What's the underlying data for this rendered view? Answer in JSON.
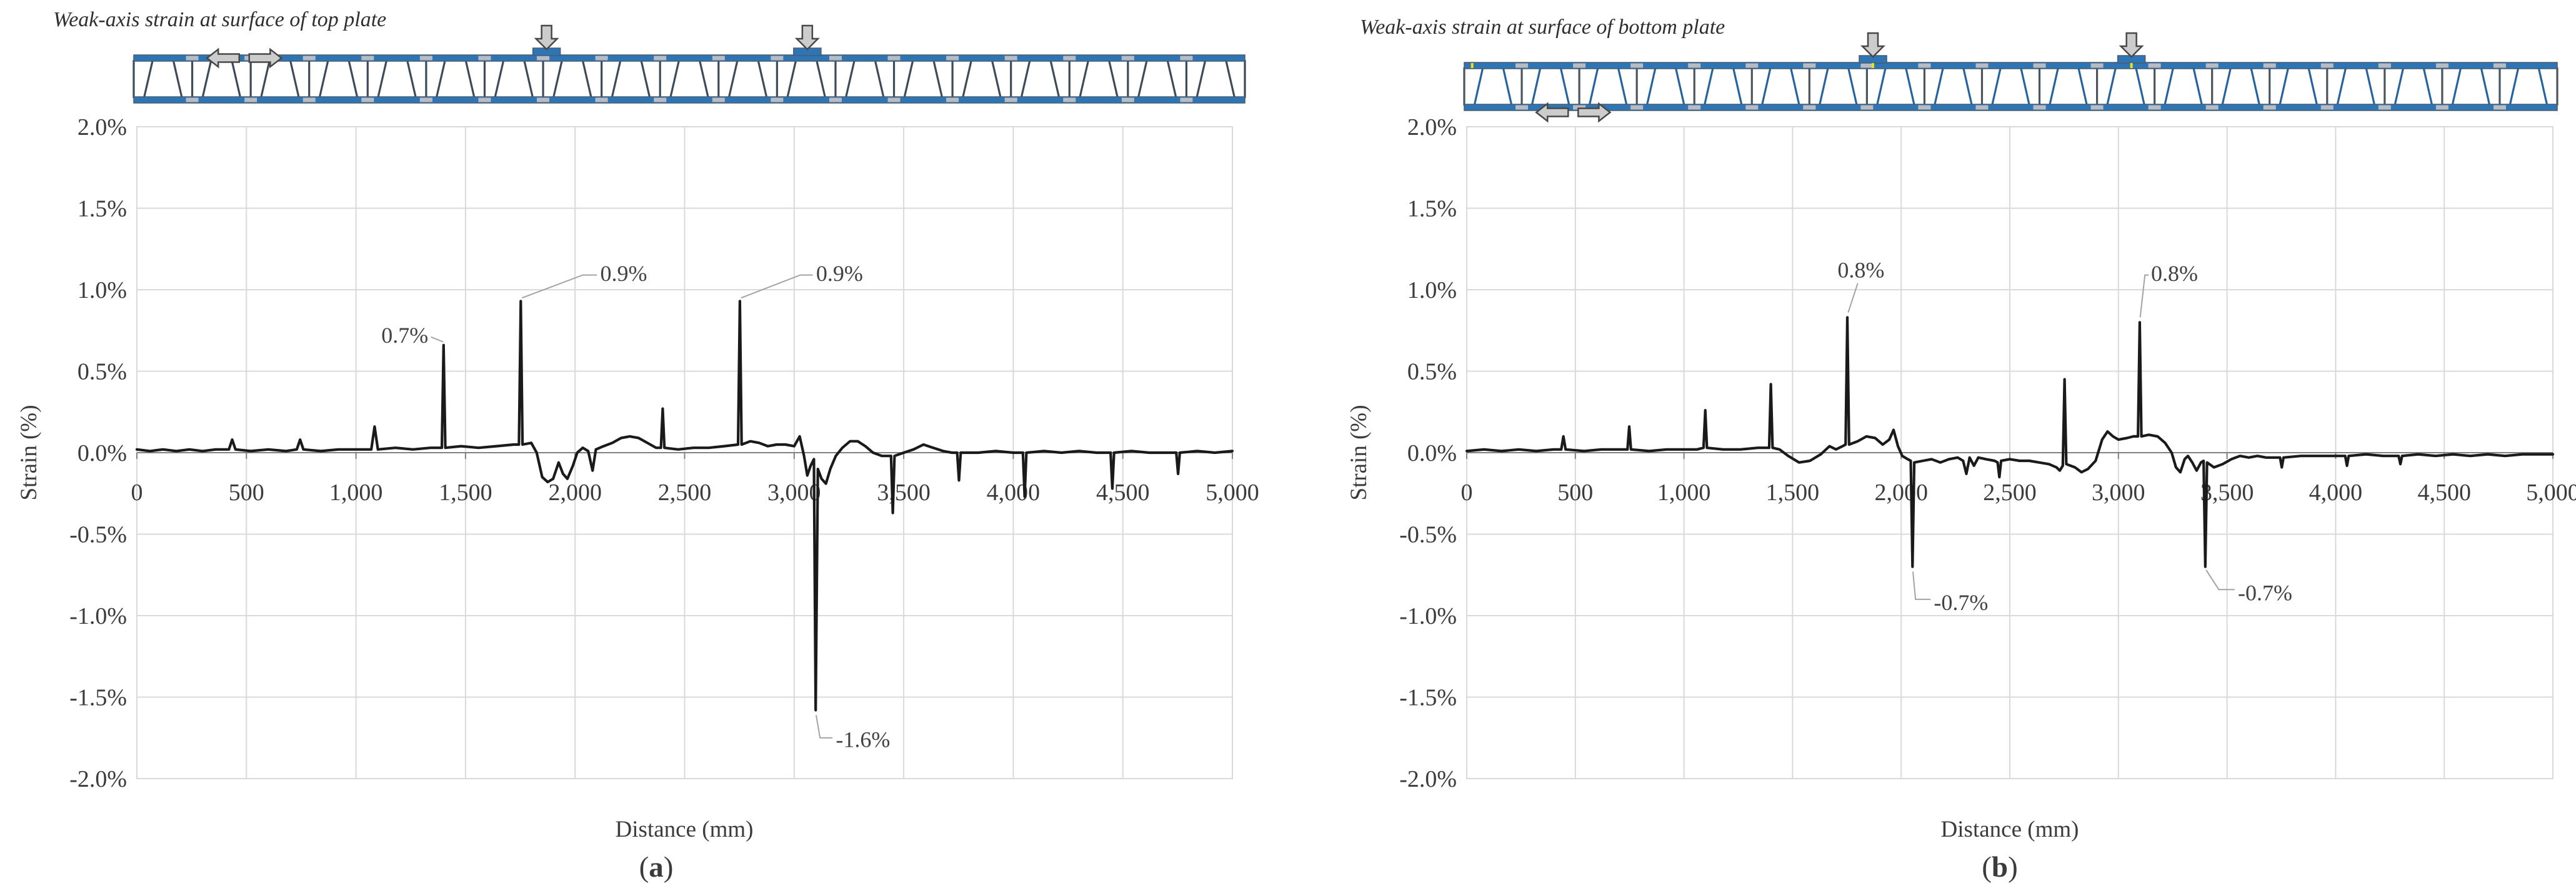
{
  "figure": {
    "background": "#ffffff",
    "description": "Two strain-distribution line charts with corrugated-web sandwich panel load diagrams above each plot"
  },
  "colors": {
    "curve": "#1a1a1a",
    "grid": "#d9d9d9",
    "axis": "#808080",
    "plot_border": "#d9d9d9",
    "text": "#3b3b3b",
    "leader": "#a3a3a3",
    "plate_blue": "#2e75b6",
    "plate_edge": "#4a5a6a",
    "joint_gray": "#b7bcc4",
    "arrow_fill": "#cccccc",
    "arrow_stroke": "#474747",
    "gauge_yellow": "#f0e10a"
  },
  "chart_data": [
    {
      "panel": "a",
      "type": "line",
      "title": "Weak-axis strain at surface of top plate",
      "caption": "(a)",
      "xlabel": "Distance (mm)",
      "ylabel": "Strain (%)",
      "xlim": [
        0,
        5000
      ],
      "ylim": [
        -2,
        2
      ],
      "grid": true,
      "legend": "none",
      "x_ticks": [
        "0",
        "500",
        "1,000",
        "1,500",
        "2,000",
        "2,500",
        "3,000",
        "3,500",
        "4,000",
        "4,500",
        "5,000"
      ],
      "y_ticks": [
        "2.0%",
        "1.5%",
        "1.0%",
        "0.5%",
        "0.0%",
        "-0.5%",
        "-1.0%",
        "-1.5%",
        "-2.0%"
      ],
      "diagram": {
        "kind": "corrugated-web sandwich panel elevation",
        "web_color": "#3d4a5a",
        "post_color": "#3d4a5a",
        "load_positions_mm": [
          1870,
          3060
        ],
        "slip_arrow_positions_mm": [
          320,
          660
        ],
        "slip_arrow_surface": "top",
        "gauge_marks_mm": []
      },
      "annotations": [
        {
          "label": "0.7%",
          "point": [
            1400,
            0.66
          ],
          "text_at": [
            1330,
            0.72
          ],
          "anchor": "end",
          "leader": [
            [
              1398,
              0.68
            ],
            [
              1342,
              0.71
            ]
          ]
        },
        {
          "label": "0.9%",
          "point": [
            1752,
            0.93
          ],
          "text_at": [
            2115,
            1.1
          ],
          "anchor": "start",
          "leader": [
            [
              1758,
              0.95
            ],
            [
              2035,
              1.09
            ],
            [
              2100,
              1.09
            ]
          ]
        },
        {
          "label": "0.9%",
          "point": [
            2752,
            0.93
          ],
          "text_at": [
            3100,
            1.1
          ],
          "anchor": "start",
          "leader": [
            [
              2758,
              0.95
            ],
            [
              3028,
              1.09
            ],
            [
              3085,
              1.09
            ]
          ]
        },
        {
          "label": "-1.6%",
          "point": [
            3098,
            -1.58
          ],
          "text_at": [
            3190,
            -1.76
          ],
          "anchor": "start",
          "leader": [
            [
              3100,
              -1.61
            ],
            [
              3118,
              -1.75
            ],
            [
              3175,
              -1.75
            ]
          ]
        }
      ],
      "series": [
        [
          0,
          0.02
        ],
        [
          60,
          0.01
        ],
        [
          120,
          0.02
        ],
        [
          180,
          0.01
        ],
        [
          240,
          0.02
        ],
        [
          300,
          0.01
        ],
        [
          360,
          0.02
        ],
        [
          420,
          0.02
        ],
        [
          435,
          0.08
        ],
        [
          450,
          0.02
        ],
        [
          520,
          0.01
        ],
        [
          600,
          0.02
        ],
        [
          680,
          0.01
        ],
        [
          730,
          0.02
        ],
        [
          745,
          0.08
        ],
        [
          760,
          0.02
        ],
        [
          840,
          0.01
        ],
        [
          920,
          0.02
        ],
        [
          1000,
          0.02
        ],
        [
          1070,
          0.02
        ],
        [
          1085,
          0.16
        ],
        [
          1100,
          0.02
        ],
        [
          1180,
          0.03
        ],
        [
          1260,
          0.02
        ],
        [
          1340,
          0.03
        ],
        [
          1392,
          0.03
        ],
        [
          1400,
          0.66
        ],
        [
          1408,
          0.03
        ],
        [
          1480,
          0.04
        ],
        [
          1560,
          0.03
        ],
        [
          1640,
          0.04
        ],
        [
          1720,
          0.05
        ],
        [
          1744,
          0.05
        ],
        [
          1752,
          0.93
        ],
        [
          1760,
          0.05
        ],
        [
          1800,
          0.06
        ],
        [
          1825,
          0.0
        ],
        [
          1850,
          -0.15
        ],
        [
          1875,
          -0.18
        ],
        [
          1900,
          -0.16
        ],
        [
          1925,
          -0.06
        ],
        [
          1945,
          -0.13
        ],
        [
          1965,
          -0.16
        ],
        [
          1990,
          -0.08
        ],
        [
          2010,
          0.0
        ],
        [
          2035,
          0.03
        ],
        [
          2060,
          0.01
        ],
        [
          2080,
          -0.11
        ],
        [
          2095,
          0.02
        ],
        [
          2130,
          0.04
        ],
        [
          2170,
          0.06
        ],
        [
          2210,
          0.09
        ],
        [
          2250,
          0.1
        ],
        [
          2290,
          0.09
        ],
        [
          2330,
          0.06
        ],
        [
          2370,
          0.03
        ],
        [
          2392,
          0.03
        ],
        [
          2400,
          0.27
        ],
        [
          2408,
          0.03
        ],
        [
          2470,
          0.02
        ],
        [
          2540,
          0.03
        ],
        [
          2610,
          0.03
        ],
        [
          2680,
          0.04
        ],
        [
          2744,
          0.05
        ],
        [
          2752,
          0.93
        ],
        [
          2760,
          0.05
        ],
        [
          2800,
          0.07
        ],
        [
          2840,
          0.06
        ],
        [
          2880,
          0.04
        ],
        [
          2920,
          0.05
        ],
        [
          2960,
          0.05
        ],
        [
          3000,
          0.04
        ],
        [
          3025,
          0.1
        ],
        [
          3045,
          -0.02
        ],
        [
          3060,
          -0.14
        ],
        [
          3075,
          -0.08
        ],
        [
          3090,
          -0.04
        ],
        [
          3098,
          -1.58
        ],
        [
          3108,
          -0.1
        ],
        [
          3125,
          -0.16
        ],
        [
          3145,
          -0.19
        ],
        [
          3165,
          -0.1
        ],
        [
          3190,
          -0.02
        ],
        [
          3220,
          0.03
        ],
        [
          3255,
          0.07
        ],
        [
          3290,
          0.07
        ],
        [
          3325,
          0.04
        ],
        [
          3360,
          0.0
        ],
        [
          3400,
          -0.02
        ],
        [
          3442,
          -0.02
        ],
        [
          3450,
          -0.37
        ],
        [
          3458,
          -0.02
        ],
        [
          3500,
          0.0
        ],
        [
          3545,
          0.02
        ],
        [
          3590,
          0.05
        ],
        [
          3635,
          0.03
        ],
        [
          3680,
          0.01
        ],
        [
          3720,
          0.0
        ],
        [
          3744,
          0.0
        ],
        [
          3752,
          -0.17
        ],
        [
          3760,
          0.0
        ],
        [
          3840,
          0.0
        ],
        [
          3920,
          0.01
        ],
        [
          4000,
          0.0
        ],
        [
          4044,
          0.0
        ],
        [
          4052,
          -0.27
        ],
        [
          4060,
          0.0
        ],
        [
          4140,
          0.01
        ],
        [
          4220,
          0.0
        ],
        [
          4300,
          0.01
        ],
        [
          4380,
          0.0
        ],
        [
          4444,
          0.0
        ],
        [
          4452,
          -0.22
        ],
        [
          4460,
          0.0
        ],
        [
          4540,
          0.01
        ],
        [
          4620,
          0.0
        ],
        [
          4700,
          0.0
        ],
        [
          4744,
          0.0
        ],
        [
          4752,
          -0.13
        ],
        [
          4760,
          0.0
        ],
        [
          4840,
          0.01
        ],
        [
          4920,
          0.0
        ],
        [
          5000,
          0.01
        ]
      ]
    },
    {
      "panel": "b",
      "type": "line",
      "title": "Weak-axis strain at surface of bottom plate",
      "caption": "(b)",
      "xlabel": "Distance (mm)",
      "ylabel": "Strain (%)",
      "xlim": [
        0,
        5000
      ],
      "ylim": [
        -2,
        2
      ],
      "grid": true,
      "legend": "none",
      "x_ticks": [
        "0",
        "500",
        "1,000",
        "1,500",
        "2,000",
        "2,500",
        "3,000",
        "3,500",
        "4,000",
        "4,500",
        "5,000"
      ],
      "y_ticks": [
        "2.0%",
        "1.5%",
        "1.0%",
        "0.5%",
        "0.0%",
        "-0.5%",
        "-1.0%",
        "-1.5%",
        "-2.0%"
      ],
      "diagram": {
        "kind": "corrugated-web sandwich panel elevation",
        "web_color": "#2563a0",
        "post_color": "#4a5560",
        "load_positions_mm": [
          1870,
          3060
        ],
        "slip_arrow_positions_mm": [
          320,
          660
        ],
        "slip_arrow_surface": "bottom",
        "gauge_marks_mm": [
          25,
          1870,
          3060
        ]
      },
      "annotations": [
        {
          "label": "0.8%",
          "point": [
            1752,
            0.83
          ],
          "text_at": [
            1815,
            1.12
          ],
          "anchor": "middle",
          "leader": [
            [
              1756,
              0.86
            ],
            [
              1800,
              1.04
            ]
          ]
        },
        {
          "label": "0.8%",
          "point": [
            3098,
            0.8
          ],
          "text_at": [
            3150,
            1.1
          ],
          "anchor": "start",
          "leader": [
            [
              3100,
              0.83
            ],
            [
              3122,
              1.09
            ],
            [
              3140,
              1.09
            ]
          ]
        },
        {
          "label": "-0.7%",
          "point": [
            2052,
            -0.7
          ],
          "text_at": [
            2150,
            -0.92
          ],
          "anchor": "start",
          "leader": [
            [
              2054,
              -0.73
            ],
            [
              2066,
              -0.9
            ],
            [
              2135,
              -0.9
            ]
          ]
        },
        {
          "label": "-0.7%",
          "point": [
            3400,
            -0.7
          ],
          "text_at": [
            3550,
            -0.86
          ],
          "anchor": "start",
          "leader": [
            [
              3404,
              -0.72
            ],
            [
              3462,
              -0.84
            ],
            [
              3535,
              -0.84
            ]
          ]
        }
      ],
      "series": [
        [
          0,
          0.01
        ],
        [
          80,
          0.02
        ],
        [
          160,
          0.01
        ],
        [
          240,
          0.02
        ],
        [
          320,
          0.01
        ],
        [
          400,
          0.02
        ],
        [
          435,
          0.02
        ],
        [
          445,
          0.1
        ],
        [
          455,
          0.02
        ],
        [
          540,
          0.01
        ],
        [
          620,
          0.02
        ],
        [
          700,
          0.02
        ],
        [
          740,
          0.02
        ],
        [
          748,
          0.16
        ],
        [
          756,
          0.02
        ],
        [
          840,
          0.01
        ],
        [
          920,
          0.02
        ],
        [
          1000,
          0.02
        ],
        [
          1060,
          0.02
        ],
        [
          1090,
          0.03
        ],
        [
          1098,
          0.26
        ],
        [
          1106,
          0.03
        ],
        [
          1180,
          0.02
        ],
        [
          1260,
          0.02
        ],
        [
          1340,
          0.03
        ],
        [
          1392,
          0.03
        ],
        [
          1400,
          0.42
        ],
        [
          1408,
          0.03
        ],
        [
          1440,
          0.02
        ],
        [
          1480,
          -0.02
        ],
        [
          1530,
          -0.06
        ],
        [
          1580,
          -0.05
        ],
        [
          1630,
          -0.01
        ],
        [
          1670,
          0.04
        ],
        [
          1700,
          0.02
        ],
        [
          1730,
          0.04
        ],
        [
          1744,
          0.05
        ],
        [
          1752,
          0.83
        ],
        [
          1760,
          0.05
        ],
        [
          1800,
          0.07
        ],
        [
          1840,
          0.1
        ],
        [
          1880,
          0.09
        ],
        [
          1915,
          0.05
        ],
        [
          1945,
          0.08
        ],
        [
          1965,
          0.14
        ],
        [
          1985,
          0.04
        ],
        [
          2005,
          -0.02
        ],
        [
          2030,
          -0.04
        ],
        [
          2044,
          -0.05
        ],
        [
          2052,
          -0.7
        ],
        [
          2060,
          -0.06
        ],
        [
          2100,
          -0.05
        ],
        [
          2140,
          -0.04
        ],
        [
          2180,
          -0.06
        ],
        [
          2220,
          -0.04
        ],
        [
          2260,
          -0.03
        ],
        [
          2285,
          -0.05
        ],
        [
          2300,
          -0.13
        ],
        [
          2315,
          -0.03
        ],
        [
          2335,
          -0.08
        ],
        [
          2355,
          -0.03
        ],
        [
          2390,
          -0.04
        ],
        [
          2430,
          -0.05
        ],
        [
          2444,
          -0.06
        ],
        [
          2452,
          -0.15
        ],
        [
          2460,
          -0.05
        ],
        [
          2500,
          -0.04
        ],
        [
          2545,
          -0.05
        ],
        [
          2590,
          -0.05
        ],
        [
          2635,
          -0.06
        ],
        [
          2680,
          -0.07
        ],
        [
          2715,
          -0.09
        ],
        [
          2730,
          -0.11
        ],
        [
          2744,
          -0.08
        ],
        [
          2752,
          0.45
        ],
        [
          2760,
          -0.07
        ],
        [
          2800,
          -0.09
        ],
        [
          2830,
          -0.12
        ],
        [
          2860,
          -0.1
        ],
        [
          2895,
          -0.05
        ],
        [
          2925,
          0.08
        ],
        [
          2950,
          0.13
        ],
        [
          2975,
          0.1
        ],
        [
          3000,
          0.08
        ],
        [
          3040,
          0.09
        ],
        [
          3070,
          0.1
        ],
        [
          3090,
          0.1
        ],
        [
          3098,
          0.8
        ],
        [
          3106,
          0.1
        ],
        [
          3140,
          0.11
        ],
        [
          3180,
          0.1
        ],
        [
          3215,
          0.06
        ],
        [
          3245,
          0.0
        ],
        [
          3265,
          -0.09
        ],
        [
          3285,
          -0.12
        ],
        [
          3305,
          -0.04
        ],
        [
          3320,
          -0.02
        ],
        [
          3340,
          -0.06
        ],
        [
          3360,
          -0.11
        ],
        [
          3380,
          -0.06
        ],
        [
          3392,
          -0.05
        ],
        [
          3400,
          -0.7
        ],
        [
          3408,
          -0.06
        ],
        [
          3440,
          -0.09
        ],
        [
          3480,
          -0.07
        ],
        [
          3520,
          -0.04
        ],
        [
          3560,
          -0.02
        ],
        [
          3600,
          -0.03
        ],
        [
          3640,
          -0.02
        ],
        [
          3680,
          -0.03
        ],
        [
          3720,
          -0.03
        ],
        [
          3744,
          -0.03
        ],
        [
          3752,
          -0.09
        ],
        [
          3760,
          -0.03
        ],
        [
          3840,
          -0.02
        ],
        [
          3920,
          -0.02
        ],
        [
          4000,
          -0.02
        ],
        [
          4044,
          -0.02
        ],
        [
          4052,
          -0.08
        ],
        [
          4060,
          -0.02
        ],
        [
          4140,
          -0.01
        ],
        [
          4220,
          -0.02
        ],
        [
          4290,
          -0.02
        ],
        [
          4298,
          -0.07
        ],
        [
          4306,
          -0.02
        ],
        [
          4380,
          -0.01
        ],
        [
          4460,
          -0.02
        ],
        [
          4540,
          -0.01
        ],
        [
          4620,
          -0.02
        ],
        [
          4700,
          -0.01
        ],
        [
          4780,
          -0.02
        ],
        [
          4860,
          -0.01
        ],
        [
          4940,
          -0.01
        ],
        [
          5000,
          -0.01
        ]
      ]
    }
  ]
}
